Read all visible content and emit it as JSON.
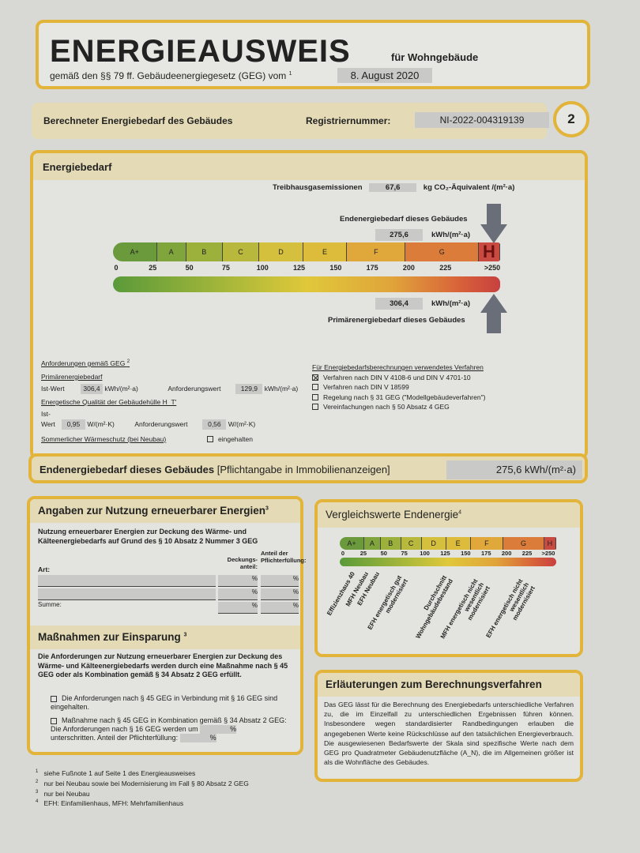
{
  "title": {
    "main": "ENERGIEAUSWEIS",
    "sub": "für Wohngebäude",
    "law": "gemäß den §§ 79 ff. Gebäudeenergiegesetz (GEG) vom",
    "law_sup": "1",
    "date": "8. August 2020"
  },
  "header": {
    "label": "Berechneter Energiebedarf des Gebäudes",
    "reg_label": "Registriernummer:",
    "reg_value": "NI-2022-004319139",
    "page": "2"
  },
  "energiebedarf": {
    "title": "Energiebedarf",
    "ghg_label": "Treibhausgasemissionen",
    "ghg_value": "67,6",
    "ghg_unit": "kg CO₂-Äquivalent /(m²·a)",
    "end_label": "Endenergiebedarf dieses Gebäudes",
    "end_value": "275,6",
    "end_unit": "kWh/(m²·a)",
    "prim_label": "Primärenergiebedarf dieses Gebäudes",
    "prim_value": "306,4",
    "prim_unit": "kWh/(m²·a)",
    "classes": [
      {
        "label": "A+",
        "upto": 30
      },
      {
        "label": "A",
        "upto": 50
      },
      {
        "label": "B",
        "upto": 75
      },
      {
        "label": "C",
        "upto": 100
      },
      {
        "label": "D",
        "upto": 130
      },
      {
        "label": "E",
        "upto": 160
      },
      {
        "label": "F",
        "upto": 200
      },
      {
        "label": "G",
        "upto": 250
      },
      {
        "label": "H",
        "upto": null
      }
    ],
    "active_class": "H",
    "ticks": [
      "0",
      "25",
      "50",
      "75",
      "100",
      "125",
      "150",
      "175",
      "200",
      "225",
      ">250"
    ],
    "class_colors": [
      "#6a9a3c",
      "#7fa53c",
      "#9cb03c",
      "#b8b83c",
      "#d4c03c",
      "#dcbc3a",
      "#e0a83a",
      "#dc7c3a",
      "#c84a40"
    ]
  },
  "requirements": {
    "title": "Anforderungen gemäß GEG",
    "title_sup": "2",
    "prim_title": "Primärenergiebedarf",
    "ist_label": "Ist-Wert",
    "prim_ist": "306,4",
    "prim_unit": "kWh/(m²·a)",
    "anf_label": "Anforderungswert",
    "prim_anf": "129,9",
    "ht_title": "Energetische Qualität der Gebäudehülle H_T'",
    "ht_ist": "0,95",
    "ht_unit": "W/(m²·K)",
    "ht_anf": "0,56",
    "summer_label": "Sommerlicher Wärmeschutz (bei Neubau)",
    "summer_check": "eingehalten",
    "method_title": "Für Energiebedarfsberechnungen verwendetes Verfahren",
    "methods": [
      {
        "label": "Verfahren nach DIN V 4108-6 und DIN V 4701-10",
        "checked": true
      },
      {
        "label": "Verfahren nach DIN V 18599",
        "checked": false
      },
      {
        "label": "Regelung nach § 31 GEG (\"Modellgebäudeverfahren\")",
        "checked": false
      },
      {
        "label": "Vereinfachungen nach § 50 Absatz 4 GEG",
        "checked": false
      }
    ]
  },
  "end_bar": {
    "label": "Endenergiebedarf dieses Gebäudes",
    "note": "[Pflichtangabe in Immobilienanzeigen]",
    "value": "275,6 kWh/(m²·a)"
  },
  "renewables": {
    "title": "Angaben zur Nutzung erneuerbarer Energien",
    "title_sup": "3",
    "intro": "Nutzung erneuerbarer Energien zur Deckung des Wärme- und Kälteenergiebedarfs auf Grund des § 10 Absatz 2 Nummer 3 GEG",
    "col_art": "Art:",
    "col_deckung": "Deckungs-anteil:",
    "col_pflicht": "Anteil der Pflichterfüllung:",
    "rows": [
      {
        "art": "",
        "deckung": "%",
        "pflicht": "%"
      },
      {
        "art": "",
        "deckung": "%",
        "pflicht": "%"
      }
    ],
    "sum_label": "Summe:",
    "sum_deckung": "%",
    "sum_pflicht": "%"
  },
  "measures": {
    "title": "Maßnahmen zur Einsparung",
    "title_sup": "3",
    "intro": "Die Anforderungen zur Nutzung erneuerbarer Energien zur Deckung des Wärme- und Kälteenergiebedarfs werden durch eine Maßnahme nach § 45 GEG oder als Kombination gemäß § 34 Absatz 2 GEG erfüllt.",
    "opt1": "Die Anforderungen nach § 45 GEG in Verbindung mit § 16 GEG sind eingehalten.",
    "opt2a": "Maßnahme nach § 45 GEG in Kombination gemäß § 34 Absatz 2 GEG: Die Anforderungen nach § 16 GEG werden um",
    "opt2_pct1": "%",
    "opt2b": "unterschritten. Anteil der Pflichterfüllung:",
    "opt2_pct2": "%"
  },
  "comparison": {
    "title": "Vergleichswerte Endenergie",
    "title_sup": "4",
    "ticks": [
      "0",
      "25",
      "50",
      "75",
      "100",
      "125",
      "150",
      "175",
      "200",
      "225",
      ">250"
    ],
    "references": [
      {
        "label": "Effizienzhaus 40",
        "value": 20
      },
      {
        "label": "MFH Neubau",
        "value": 37
      },
      {
        "label": "EFH Neubau",
        "value": 50
      },
      {
        "label": "EFH energetisch gut modernisiert",
        "value": 85
      },
      {
        "label": "Durchschnitt Wohngebäudebestand",
        "value": 140
      },
      {
        "label": "MFH energetisch nicht wesentlich modernisiert",
        "value": 185
      },
      {
        "label": "EFH energetisch nicht wesentlich modernisiert",
        "value": 240
      }
    ]
  },
  "explanation": {
    "title": "Erläuterungen zum Berechnungsverfahren",
    "text": "Das GEG lässt für die Berechnung des Energiebedarfs unterschiedliche Verfahren zu, die im Einzelfall zu unterschiedlichen Ergebnissen führen können. Insbesondere wegen standardisierter Randbedingungen erlauben die angegebenen Werte keine Rückschlüsse auf den tatsächlichen Energieverbrauch. Die ausgewiesenen Bedarfswerte der Skala sind spezifische Werte nach dem GEG pro Quadratmeter Gebäudenutzfläche (A_N), die im Allgemeinen größer ist als die Wohnfläche des Gebäudes."
  },
  "footnotes": [
    {
      "n": "1",
      "text": "siehe Fußnote 1 auf Seite 1 des Energieausweises"
    },
    {
      "n": "2",
      "text": "nur bei Neubau sowie bei Modernisierung im Fall § 80 Absatz 2 GEG"
    },
    {
      "n": "3",
      "text": "nur bei Neubau"
    },
    {
      "n": "4",
      "text": "EFH: Einfamilienhaus, MFH: Mehrfamilienhaus"
    }
  ]
}
